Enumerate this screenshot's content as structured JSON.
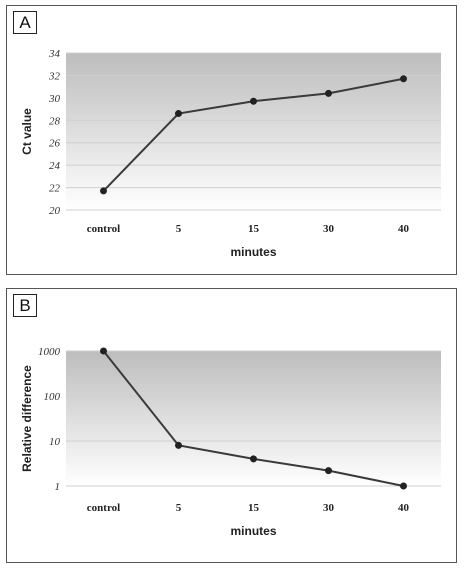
{
  "chart_data": [
    {
      "panel": "A",
      "type": "line",
      "categories": [
        "control",
        "5",
        "15",
        "30",
        "40"
      ],
      "values": [
        21.7,
        28.6,
        29.7,
        30.4,
        31.7
      ],
      "xlabel": "minutes",
      "ylabel": "Ct value",
      "yticks": [
        "20",
        "22",
        "24",
        "26",
        "28",
        "30",
        "32",
        "34"
      ],
      "ylim": [
        20,
        34
      ],
      "scale": "linear",
      "grid": true,
      "colors": {
        "bg_top": "#bdbdbd",
        "bg_bottom": "#ffffff",
        "line": "#3a3a3a",
        "marker": "#222222",
        "grid": "#cfcfcf"
      }
    },
    {
      "panel": "B",
      "type": "line",
      "categories": [
        "control",
        "5",
        "15",
        "30",
        "40"
      ],
      "values": [
        1000,
        8,
        4,
        2.2,
        1
      ],
      "xlabel": "minutes",
      "ylabel": "Relative difference",
      "yticks": [
        "1",
        "10",
        "100",
        "1000"
      ],
      "ylim": [
        1,
        1000
      ],
      "scale": "log",
      "grid": true,
      "colors": {
        "bg_top": "#bdbdbd",
        "bg_bottom": "#ffffff",
        "line": "#3a3a3a",
        "marker": "#222222",
        "grid": "#cfcfcf"
      }
    }
  ]
}
